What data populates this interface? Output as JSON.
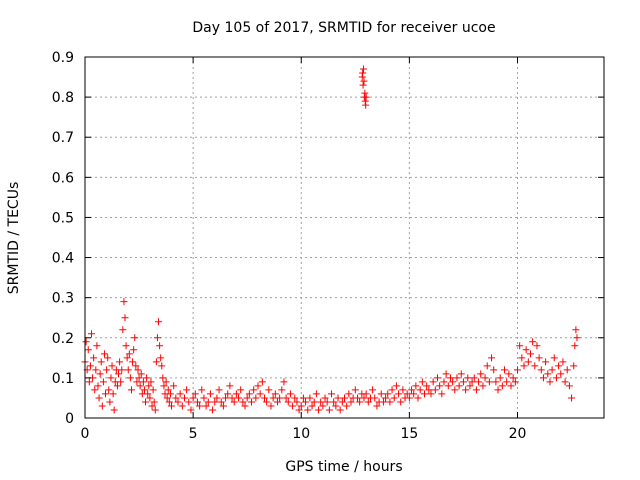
{
  "chart_data": {
    "type": "scatter",
    "title": "Day 105 of 2017, SRMTID for receiver ucoe",
    "xlabel": "GPS time / hours",
    "ylabel": "SRMTID / TECUs",
    "xlim": [
      0,
      24
    ],
    "ylim": [
      0,
      0.9
    ],
    "xticks": [
      0,
      5,
      10,
      15,
      20
    ],
    "yticks": [
      0,
      0.1,
      0.2,
      0.3,
      0.4,
      0.5,
      0.6,
      0.7,
      0.8,
      0.9
    ],
    "xtick_labels": [
      "0",
      "5",
      "10",
      "15",
      "20"
    ],
    "ytick_labels": [
      "0",
      "0.1",
      "0.2",
      "0.3",
      "0.4",
      "0.5",
      "0.6",
      "0.7",
      "0.8",
      "0.9"
    ],
    "grid": true,
    "marker": "+",
    "series": [
      {
        "name": "SRMTID",
        "color": "#ff0000",
        "points": [
          [
            0.0,
            0.14
          ],
          [
            0.05,
            0.19
          ],
          [
            0.1,
            0.12
          ],
          [
            0.15,
            0.17
          ],
          [
            0.2,
            0.09
          ],
          [
            0.25,
            0.13
          ],
          [
            0.3,
            0.21
          ],
          [
            0.35,
            0.1
          ],
          [
            0.4,
            0.15
          ],
          [
            0.45,
            0.07
          ],
          [
            0.5,
            0.12
          ],
          [
            0.55,
            0.18
          ],
          [
            0.6,
            0.08
          ],
          [
            0.65,
            0.05
          ],
          [
            0.7,
            0.11
          ],
          [
            0.75,
            0.14
          ],
          [
            0.8,
            0.03
          ],
          [
            0.85,
            0.09
          ],
          [
            0.9,
            0.16
          ],
          [
            0.95,
            0.06
          ],
          [
            1.0,
            0.12
          ],
          [
            1.05,
            0.15
          ],
          [
            1.1,
            0.07
          ],
          [
            1.15,
            0.04
          ],
          [
            1.2,
            0.1
          ],
          [
            1.25,
            0.13
          ],
          [
            1.3,
            0.06
          ],
          [
            1.35,
            0.02
          ],
          [
            1.4,
            0.09
          ],
          [
            1.45,
            0.12
          ],
          [
            1.5,
            0.08
          ],
          [
            1.55,
            0.11
          ],
          [
            1.6,
            0.14
          ],
          [
            1.65,
            0.09
          ],
          [
            1.7,
            0.12
          ],
          [
            1.75,
            0.22
          ],
          [
            1.8,
            0.29
          ],
          [
            1.85,
            0.25
          ],
          [
            1.9,
            0.18
          ],
          [
            1.95,
            0.15
          ],
          [
            2.0,
            0.12
          ],
          [
            2.05,
            0.16
          ],
          [
            2.1,
            0.1
          ],
          [
            2.15,
            0.07
          ],
          [
            2.2,
            0.14
          ],
          [
            2.25,
            0.17
          ],
          [
            2.3,
            0.2
          ],
          [
            2.35,
            0.13
          ],
          [
            2.4,
            0.09
          ],
          [
            2.45,
            0.12
          ],
          [
            2.5,
            0.1
          ],
          [
            2.55,
            0.08
          ],
          [
            2.6,
            0.11
          ],
          [
            2.65,
            0.06
          ],
          [
            2.7,
            0.09
          ],
          [
            2.75,
            0.07
          ],
          [
            2.8,
            0.04
          ],
          [
            2.85,
            0.1
          ],
          [
            2.9,
            0.06
          ],
          [
            2.95,
            0.08
          ],
          [
            3.0,
            0.05
          ],
          [
            3.05,
            0.09
          ],
          [
            3.1,
            0.03
          ],
          [
            3.15,
            0.07
          ],
          [
            3.2,
            0.04
          ],
          [
            3.25,
            0.02
          ],
          [
            3.3,
            0.14
          ],
          [
            3.35,
            0.2
          ],
          [
            3.4,
            0.24
          ],
          [
            3.45,
            0.18
          ],
          [
            3.5,
            0.15
          ],
          [
            3.55,
            0.13
          ],
          [
            3.6,
            0.1
          ],
          [
            3.65,
            0.08
          ],
          [
            3.7,
            0.06
          ],
          [
            3.75,
            0.09
          ],
          [
            3.8,
            0.05
          ],
          [
            3.85,
            0.07
          ],
          [
            3.9,
            0.04
          ],
          [
            3.95,
            0.06
          ],
          [
            4.0,
            0.03
          ],
          [
            4.1,
            0.08
          ],
          [
            4.2,
            0.05
          ],
          [
            4.3,
            0.04
          ],
          [
            4.4,
            0.06
          ],
          [
            4.5,
            0.03
          ],
          [
            4.6,
            0.05
          ],
          [
            4.7,
            0.07
          ],
          [
            4.8,
            0.04
          ],
          [
            4.9,
            0.02
          ],
          [
            5.0,
            0.05
          ],
          [
            5.1,
            0.06
          ],
          [
            5.2,
            0.04
          ],
          [
            5.3,
            0.03
          ],
          [
            5.4,
            0.07
          ],
          [
            5.5,
            0.05
          ],
          [
            5.6,
            0.03
          ],
          [
            5.7,
            0.04
          ],
          [
            5.8,
            0.06
          ],
          [
            5.9,
            0.02
          ],
          [
            6.0,
            0.04
          ],
          [
            6.1,
            0.05
          ],
          [
            6.2,
            0.07
          ],
          [
            6.3,
            0.04
          ],
          [
            6.4,
            0.03
          ],
          [
            6.5,
            0.05
          ],
          [
            6.6,
            0.06
          ],
          [
            6.7,
            0.08
          ],
          [
            6.8,
            0.05
          ],
          [
            6.9,
            0.04
          ],
          [
            7.0,
            0.06
          ],
          [
            7.1,
            0.05
          ],
          [
            7.2,
            0.07
          ],
          [
            7.3,
            0.04
          ],
          [
            7.4,
            0.03
          ],
          [
            7.5,
            0.05
          ],
          [
            7.6,
            0.06
          ],
          [
            7.7,
            0.04
          ],
          [
            7.8,
            0.07
          ],
          [
            7.9,
            0.05
          ],
          [
            8.0,
            0.08
          ],
          [
            8.1,
            0.06
          ],
          [
            8.2,
            0.09
          ],
          [
            8.3,
            0.05
          ],
          [
            8.4,
            0.04
          ],
          [
            8.5,
            0.07
          ],
          [
            8.6,
            0.03
          ],
          [
            8.7,
            0.05
          ],
          [
            8.8,
            0.06
          ],
          [
            8.9,
            0.04
          ],
          [
            9.0,
            0.05
          ],
          [
            9.1,
            0.07
          ],
          [
            9.2,
            0.09
          ],
          [
            9.3,
            0.05
          ],
          [
            9.4,
            0.04
          ],
          [
            9.5,
            0.06
          ],
          [
            9.6,
            0.03
          ],
          [
            9.7,
            0.05
          ],
          [
            9.8,
            0.04
          ],
          [
            9.9,
            0.02
          ],
          [
            10.0,
            0.03
          ],
          [
            10.1,
            0.05
          ],
          [
            10.2,
            0.04
          ],
          [
            10.3,
            0.02
          ],
          [
            10.4,
            0.05
          ],
          [
            10.5,
            0.03
          ],
          [
            10.6,
            0.04
          ],
          [
            10.7,
            0.06
          ],
          [
            10.8,
            0.02
          ],
          [
            10.9,
            0.04
          ],
          [
            11.0,
            0.03
          ],
          [
            11.1,
            0.05
          ],
          [
            11.2,
            0.04
          ],
          [
            11.3,
            0.02
          ],
          [
            11.4,
            0.06
          ],
          [
            11.5,
            0.04
          ],
          [
            11.6,
            0.03
          ],
          [
            11.7,
            0.05
          ],
          [
            11.8,
            0.02
          ],
          [
            11.9,
            0.04
          ],
          [
            12.0,
            0.05
          ],
          [
            12.1,
            0.03
          ],
          [
            12.2,
            0.06
          ],
          [
            12.3,
            0.04
          ],
          [
            12.4,
            0.05
          ],
          [
            12.5,
            0.07
          ],
          [
            12.6,
            0.05
          ],
          [
            12.7,
            0.04
          ],
          [
            12.8,
            0.06
          ],
          [
            12.9,
            0.05
          ],
          [
            12.82,
            0.85
          ],
          [
            12.84,
            0.86
          ],
          [
            12.86,
            0.83
          ],
          [
            12.88,
            0.87
          ],
          [
            12.9,
            0.84
          ],
          [
            12.92,
            0.8
          ],
          [
            12.94,
            0.81
          ],
          [
            12.96,
            0.79
          ],
          [
            12.98,
            0.78
          ],
          [
            13.0,
            0.8
          ],
          [
            13.0,
            0.06
          ],
          [
            13.1,
            0.04
          ],
          [
            13.2,
            0.05
          ],
          [
            13.3,
            0.07
          ],
          [
            13.4,
            0.05
          ],
          [
            13.5,
            0.03
          ],
          [
            13.6,
            0.04
          ],
          [
            13.7,
            0.06
          ],
          [
            13.8,
            0.04
          ],
          [
            13.9,
            0.05
          ],
          [
            14.0,
            0.06
          ],
          [
            14.1,
            0.04
          ],
          [
            14.2,
            0.07
          ],
          [
            14.3,
            0.05
          ],
          [
            14.4,
            0.08
          ],
          [
            14.5,
            0.06
          ],
          [
            14.6,
            0.04
          ],
          [
            14.7,
            0.07
          ],
          [
            14.8,
            0.05
          ],
          [
            14.9,
            0.06
          ],
          [
            15.0,
            0.05
          ],
          [
            15.1,
            0.07
          ],
          [
            15.2,
            0.06
          ],
          [
            15.3,
            0.08
          ],
          [
            15.4,
            0.05
          ],
          [
            15.5,
            0.07
          ],
          [
            15.6,
            0.09
          ],
          [
            15.7,
            0.06
          ],
          [
            15.8,
            0.08
          ],
          [
            15.9,
            0.07
          ],
          [
            16.0,
            0.06
          ],
          [
            16.1,
            0.09
          ],
          [
            16.2,
            0.07
          ],
          [
            16.3,
            0.1
          ],
          [
            16.4,
            0.08
          ],
          [
            16.5,
            0.06
          ],
          [
            16.6,
            0.09
          ],
          [
            16.7,
            0.11
          ],
          [
            16.8,
            0.08
          ],
          [
            16.9,
            0.1
          ],
          [
            17.0,
            0.09
          ],
          [
            17.1,
            0.07
          ],
          [
            17.2,
            0.1
          ],
          [
            17.3,
            0.08
          ],
          [
            17.4,
            0.11
          ],
          [
            17.5,
            0.09
          ],
          [
            17.6,
            0.07
          ],
          [
            17.7,
            0.1
          ],
          [
            17.8,
            0.08
          ],
          [
            17.9,
            0.09
          ],
          [
            18.0,
            0.1
          ],
          [
            18.1,
            0.07
          ],
          [
            18.2,
            0.09
          ],
          [
            18.3,
            0.11
          ],
          [
            18.4,
            0.08
          ],
          [
            18.5,
            0.1
          ],
          [
            18.6,
            0.13
          ],
          [
            18.7,
            0.09
          ],
          [
            18.8,
            0.15
          ],
          [
            18.9,
            0.12
          ],
          [
            19.0,
            0.09
          ],
          [
            19.1,
            0.07
          ],
          [
            19.2,
            0.1
          ],
          [
            19.3,
            0.08
          ],
          [
            19.4,
            0.12
          ],
          [
            19.5,
            0.09
          ],
          [
            19.6,
            0.11
          ],
          [
            19.7,
            0.08
          ],
          [
            19.8,
            0.1
          ],
          [
            19.9,
            0.09
          ],
          [
            20.0,
            0.12
          ],
          [
            20.1,
            0.18
          ],
          [
            20.2,
            0.15
          ],
          [
            20.3,
            0.13
          ],
          [
            20.4,
            0.17
          ],
          [
            20.5,
            0.14
          ],
          [
            20.6,
            0.16
          ],
          [
            20.7,
            0.19
          ],
          [
            20.8,
            0.13
          ],
          [
            20.9,
            0.18
          ],
          [
            21.0,
            0.15
          ],
          [
            21.1,
            0.12
          ],
          [
            21.2,
            0.1
          ],
          [
            21.3,
            0.14
          ],
          [
            21.4,
            0.11
          ],
          [
            21.5,
            0.09
          ],
          [
            21.6,
            0.12
          ],
          [
            21.7,
            0.15
          ],
          [
            21.8,
            0.1
          ],
          [
            21.9,
            0.13
          ],
          [
            22.0,
            0.11
          ],
          [
            22.1,
            0.14
          ],
          [
            22.2,
            0.09
          ],
          [
            22.3,
            0.12
          ],
          [
            22.4,
            0.08
          ],
          [
            22.5,
            0.05
          ],
          [
            22.6,
            0.13
          ],
          [
            22.65,
            0.18
          ],
          [
            22.7,
            0.22
          ],
          [
            22.75,
            0.2
          ]
        ]
      }
    ]
  }
}
